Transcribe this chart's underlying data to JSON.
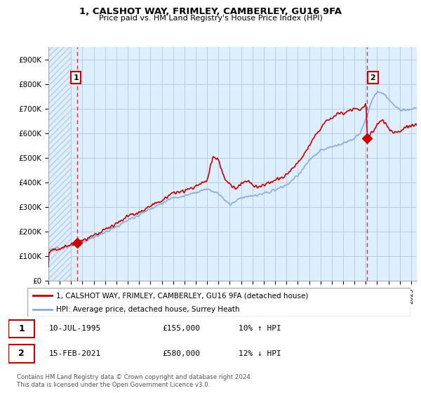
{
  "title": "1, CALSHOT WAY, FRIMLEY, CAMBERLEY, GU16 9FA",
  "subtitle": "Price paid vs. HM Land Registry's House Price Index (HPI)",
  "ylim": [
    0,
    950000
  ],
  "yticks": [
    0,
    100000,
    200000,
    300000,
    400000,
    500000,
    600000,
    700000,
    800000,
    900000
  ],
  "ytick_labels": [
    "£0",
    "£100K",
    "£200K",
    "£300K",
    "£400K",
    "£500K",
    "£600K",
    "£700K",
    "£800K",
    "£900K"
  ],
  "sale1_date": 1995.53,
  "sale1_price": 155000,
  "sale2_date": 2021.12,
  "sale2_price": 580000,
  "red_color": "#cc0000",
  "blue_color": "#88aadd",
  "vline_color": "#dd3333",
  "grid_color": "#bbccdd",
  "bg_color": "#ddeeff",
  "hatch_color": "#bbccdd",
  "legend_line1": "1, CALSHOT WAY, FRIMLEY, CAMBERLEY, GU16 9FA (detached house)",
  "legend_line2": "HPI: Average price, detached house, Surrey Heath",
  "table_row1": [
    "1",
    "10-JUL-1995",
    "£155,000",
    "10% ↑ HPI"
  ],
  "table_row2": [
    "2",
    "15-FEB-2021",
    "£580,000",
    "12% ↓ HPI"
  ],
  "footer": "Contains HM Land Registry data © Crown copyright and database right 2024.\nThis data is licensed under the Open Government Licence v3.0.",
  "xmin": 1993,
  "xmax": 2025.5
}
